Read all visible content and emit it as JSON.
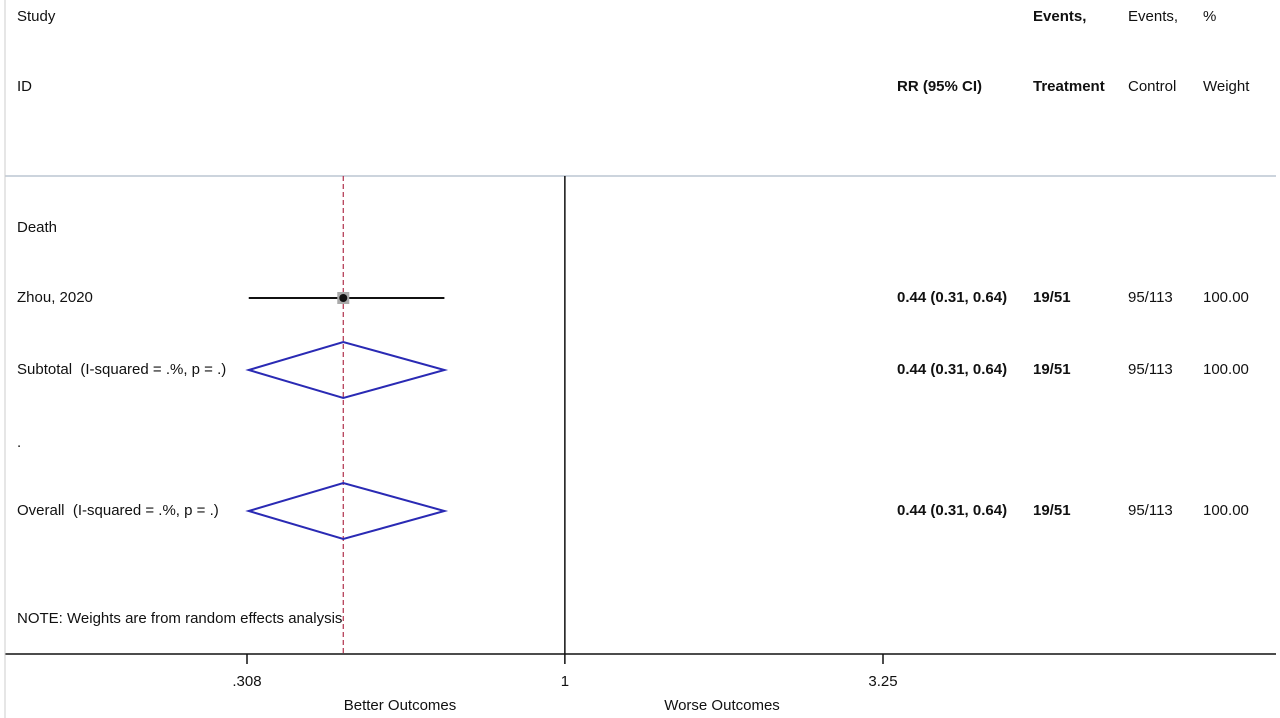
{
  "chart_data": {
    "type": "forest",
    "headers": {
      "study": "Study",
      "id": "ID",
      "rr": "RR (95% CI)",
      "treatment_top": "Events,",
      "treatment": "Treatment",
      "control_top": "Events,",
      "control": "Control",
      "weight_top": "%",
      "weight": "Weight"
    },
    "rows": [
      {
        "label": "Death"
      },
      {
        "label": "Zhou, 2020",
        "kind": "study",
        "estimate": 0.44,
        "ci": [
          0.31,
          0.64
        ],
        "value_label": "0.44 (0.31, 0.64)",
        "events_treatment": "19/51",
        "events_control": "95/113",
        "weight": {
          "value": 100,
          "label": "100.00"
        }
      },
      {
        "label": "Subtotal  (I-squared = .%, p = .)",
        "kind": "diamond",
        "estimate": 0.44,
        "ci": [
          0.31,
          0.64
        ],
        "value_label": "0.44 (0.31, 0.64)",
        "events_treatment": "19/51",
        "events_control": "95/113",
        "weight": {
          "value": 100,
          "label": "100.00"
        }
      },
      {
        "label": "."
      },
      {
        "label": "Overall  (I-squared = .%, p = .)",
        "kind": "diamond",
        "estimate": 0.44,
        "ci": [
          0.31,
          0.64
        ],
        "value_label": "0.44 (0.31, 0.64)",
        "events_treatment": "19/51",
        "events_control": "95/113",
        "weight": {
          "value": 100,
          "label": "100.00"
        }
      }
    ],
    "note": "NOTE: Weights are from random effects analysis",
    "xscale": "log",
    "xlim": [
      0.308,
      3.25
    ],
    "xticks": [
      {
        "value": 0.308,
        "label": ".308"
      },
      1,
      3.25
    ],
    "null_value": 1,
    "overall_line": true,
    "x_label_left": "Better Outcomes",
    "x_label_right": "Worse Outcomes",
    "diamond_color": "#2a2ab4",
    "overall_line_color": "#b0304a"
  }
}
